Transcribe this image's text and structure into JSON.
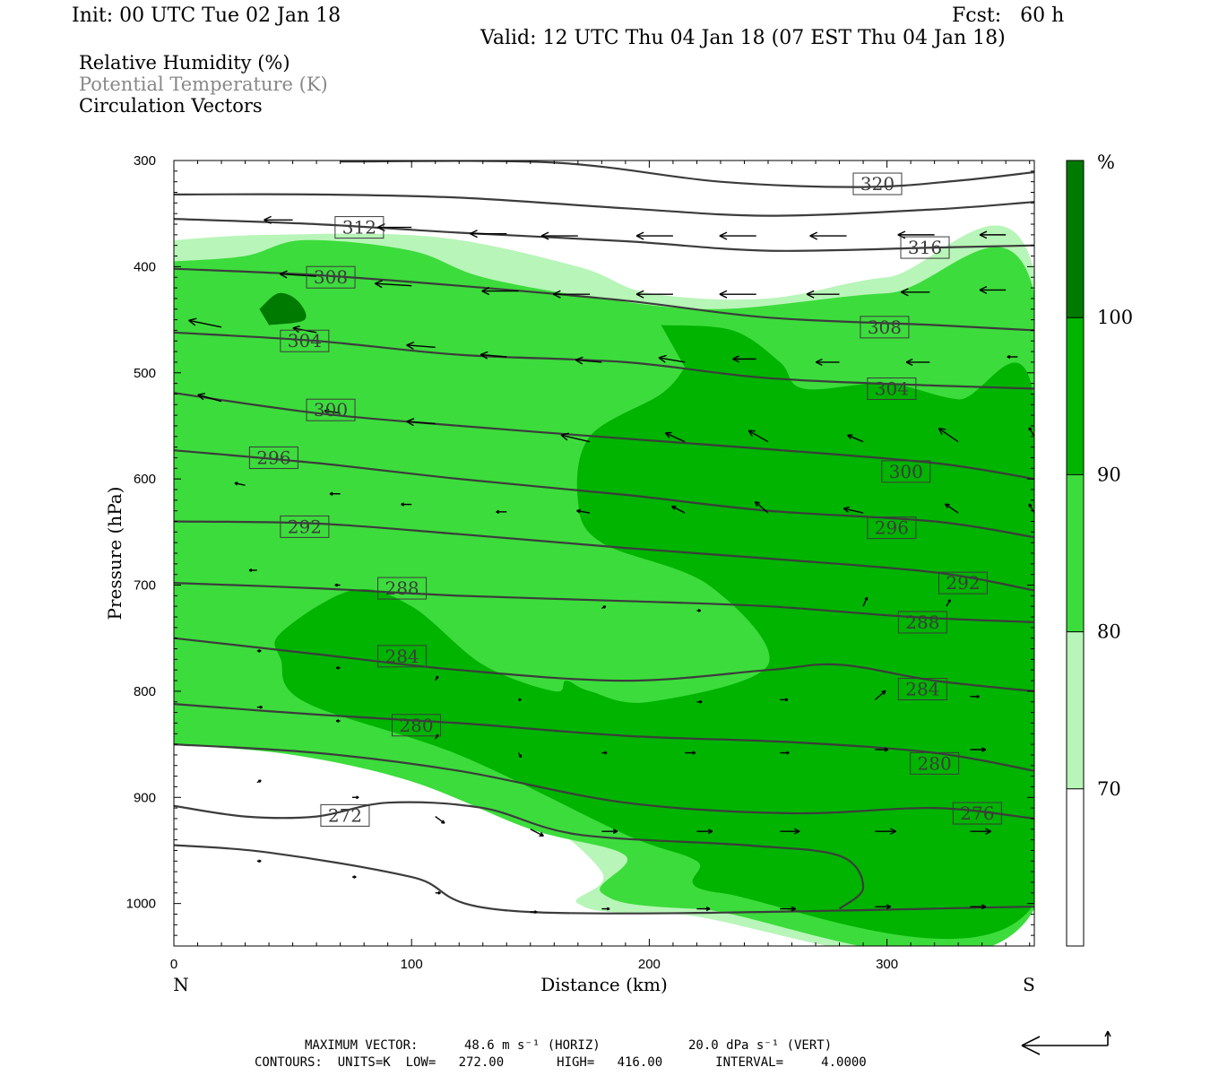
{
  "header": {
    "init": "Init: 00 UTC Tue 02 Jan 18",
    "fcst": "Fcst:   60 h",
    "valid": "Valid: 12 UTC Thu 04 Jan 18 (07 EST Thu 04 Jan 18)",
    "field_rh": "Relative Humidity (%)",
    "field_theta": "Potential Temperature (K)",
    "field_vectors": "Circulation Vectors"
  },
  "footer": {
    "max_vector_label": "MAXIMUM VECTOR:",
    "max_vector_horiz": "48.6 m s⁻¹ (HORIZ)",
    "max_vector_vert": "20.0 dPa s⁻¹ (VERT)",
    "contours_line": "CONTOURS:  UNITS=K  LOW=   272.00       HIGH=   416.00       INTERVAL=     4.0000"
  },
  "colors": {
    "rh_70_80": "#b8f5b8",
    "rh_80_90": "#3cdc3c",
    "rh_90_100": "#00b400",
    "rh_100_plus": "#007a00",
    "isentrope": "#3c3c3c",
    "vector": "#000000"
  },
  "chart_data": {
    "type": "cross-section",
    "x": {
      "label": "Distance (km)",
      "range": [
        0,
        362
      ],
      "ticks": [
        0,
        100,
        200,
        300
      ],
      "left_end": "N",
      "right_end": "S"
    },
    "y": {
      "label": "Pressure (hPa)",
      "range": [
        1040,
        300
      ],
      "ticks": [
        300,
        400,
        500,
        600,
        700,
        800,
        900,
        1000
      ],
      "reversed": true
    },
    "colorbar": {
      "unit": "%",
      "levels": [
        70,
        80,
        90,
        100
      ]
    },
    "rh_regions": [
      {
        "level": 70,
        "boundary": [
          [
            0,
            375
          ],
          [
            40,
            370
          ],
          [
            110,
            372
          ],
          [
            170,
            400
          ],
          [
            200,
            425
          ],
          [
            250,
            430
          ],
          [
            300,
            410
          ],
          [
            362,
            405
          ],
          [
            362,
            1005
          ],
          [
            210,
            1010
          ],
          [
            170,
            1000
          ],
          [
            180,
            970
          ],
          [
            140,
            900
          ],
          [
            80,
            860
          ],
          [
            0,
            850
          ]
        ]
      },
      {
        "level": 80,
        "boundary": [
          [
            0,
            395
          ],
          [
            30,
            390
          ],
          [
            55,
            375
          ],
          [
            100,
            385
          ],
          [
            130,
            410
          ],
          [
            180,
            430
          ],
          [
            230,
            440
          ],
          [
            300,
            425
          ],
          [
            362,
            425
          ],
          [
            362,
            1005
          ],
          [
            220,
            1005
          ],
          [
            180,
            990
          ],
          [
            190,
            955
          ],
          [
            150,
            930
          ],
          [
            100,
            885
          ],
          [
            50,
            860
          ],
          [
            0,
            850
          ]
        ]
      },
      {
        "level": 90,
        "boundary": [
          [
            205,
            455
          ],
          [
            235,
            460
          ],
          [
            255,
            490
          ],
          [
            265,
            515
          ],
          [
            300,
            510
          ],
          [
            330,
            525
          ],
          [
            362,
            525
          ],
          [
            362,
            1000
          ],
          [
            230,
            990
          ],
          [
            220,
            960
          ],
          [
            190,
            935
          ],
          [
            120,
            860
          ],
          [
            55,
            810
          ],
          [
            45,
            770
          ],
          [
            45,
            745
          ],
          [
            75,
            705
          ],
          [
            100,
            720
          ],
          [
            130,
            775
          ],
          [
            160,
            800
          ],
          [
            165,
            790
          ],
          [
            175,
            800
          ],
          [
            200,
            810
          ],
          [
            250,
            775
          ],
          [
            225,
            700
          ],
          [
            180,
            660
          ],
          [
            170,
            620
          ],
          [
            175,
            560
          ],
          [
            205,
            520
          ],
          [
            215,
            495
          ]
        ]
      },
      {
        "level": 100,
        "boundary": [
          [
            36,
            440
          ],
          [
            44,
            425
          ],
          [
            52,
            432
          ],
          [
            55,
            450
          ],
          [
            40,
            455
          ]
        ]
      }
    ],
    "isentropes": [
      {
        "theta": 272,
        "points": [
          [
            0,
            908
          ],
          [
            30,
            918
          ],
          [
            60,
            918
          ],
          [
            90,
            905
          ],
          [
            130,
            910
          ],
          [
            170,
            935
          ],
          [
            240,
            945
          ],
          [
            280,
            955
          ],
          [
            290,
            985
          ],
          [
            280,
            1005
          ]
        ]
      },
      {
        "theta": 276,
        "points": [
          [
            0,
            945
          ],
          [
            40,
            952
          ],
          [
            100,
            975
          ],
          [
            150,
            1008
          ],
          [
            362,
            1003
          ]
        ]
      },
      {
        "theta": 276,
        "points": [
          [
            0,
            850
          ],
          [
            60,
            858
          ],
          [
            120,
            875
          ],
          [
            190,
            905
          ],
          [
            260,
            915
          ],
          [
            320,
            910
          ],
          [
            362,
            920
          ]
        ]
      },
      {
        "theta": 280,
        "points": [
          [
            0,
            812
          ],
          [
            60,
            822
          ],
          [
            120,
            830
          ],
          [
            190,
            842
          ],
          [
            260,
            848
          ],
          [
            320,
            858
          ],
          [
            362,
            875
          ]
        ]
      },
      {
        "theta": 284,
        "points": [
          [
            0,
            750
          ],
          [
            60,
            765
          ],
          [
            120,
            780
          ],
          [
            190,
            790
          ],
          [
            250,
            780
          ],
          [
            280,
            775
          ],
          [
            320,
            790
          ],
          [
            362,
            800
          ]
        ]
      },
      {
        "theta": 288,
        "points": [
          [
            0,
            698
          ],
          [
            60,
            703
          ],
          [
            120,
            710
          ],
          [
            190,
            715
          ],
          [
            250,
            720
          ],
          [
            310,
            730
          ],
          [
            362,
            735
          ]
        ]
      },
      {
        "theta": 292,
        "points": [
          [
            0,
            640
          ],
          [
            60,
            642
          ],
          [
            120,
            652
          ],
          [
            190,
            665
          ],
          [
            250,
            675
          ],
          [
            320,
            688
          ],
          [
            362,
            705
          ]
        ]
      },
      {
        "theta": 296,
        "points": [
          [
            0,
            573
          ],
          [
            60,
            585
          ],
          [
            120,
            600
          ],
          [
            190,
            615
          ],
          [
            250,
            630
          ],
          [
            320,
            640
          ],
          [
            362,
            655
          ]
        ]
      },
      {
        "theta": 300,
        "points": [
          [
            0,
            519
          ],
          [
            60,
            538
          ],
          [
            120,
            550
          ],
          [
            190,
            562
          ],
          [
            250,
            572
          ],
          [
            320,
            585
          ],
          [
            362,
            600
          ]
        ]
      },
      {
        "theta": 304,
        "points": [
          [
            0,
            462
          ],
          [
            60,
            470
          ],
          [
            120,
            483
          ],
          [
            190,
            490
          ],
          [
            250,
            505
          ],
          [
            320,
            512
          ],
          [
            362,
            515
          ]
        ]
      },
      {
        "theta": 308,
        "points": [
          [
            0,
            402
          ],
          [
            60,
            408
          ],
          [
            120,
            418
          ],
          [
            190,
            432
          ],
          [
            250,
            448
          ],
          [
            320,
            455
          ],
          [
            362,
            460
          ]
        ]
      },
      {
        "theta": 312,
        "points": [
          [
            0,
            355
          ],
          [
            60,
            360
          ],
          [
            120,
            368
          ],
          [
            190,
            376
          ],
          [
            250,
            385
          ],
          [
            320,
            382
          ],
          [
            362,
            380
          ]
        ]
      },
      {
        "theta": 316,
        "points": [
          [
            0,
            332
          ],
          [
            60,
            332
          ],
          [
            120,
            335
          ],
          [
            190,
            345
          ],
          [
            250,
            352
          ],
          [
            320,
            346
          ],
          [
            362,
            339
          ]
        ]
      },
      {
        "theta": 320,
        "points": [
          [
            70,
            301
          ],
          [
            160,
            302
          ],
          [
            230,
            320
          ],
          [
            290,
            325
          ],
          [
            330,
            319
          ],
          [
            362,
            311
          ]
        ]
      }
    ],
    "contour_labels": [
      {
        "text": "320",
        "x": 296,
        "y": 322
      },
      {
        "text": "316",
        "x": 316,
        "y": 382
      },
      {
        "text": "312",
        "x": 78,
        "y": 363
      },
      {
        "text": "308",
        "x": 66,
        "y": 410
      },
      {
        "text": "308",
        "x": 299,
        "y": 457
      },
      {
        "text": "304",
        "x": 55,
        "y": 470
      },
      {
        "text": "304",
        "x": 302,
        "y": 515
      },
      {
        "text": "300",
        "x": 66,
        "y": 535
      },
      {
        "text": "300",
        "x": 308,
        "y": 593
      },
      {
        "text": "296",
        "x": 42,
        "y": 580
      },
      {
        "text": "296",
        "x": 302,
        "y": 646
      },
      {
        "text": "292",
        "x": 55,
        "y": 645
      },
      {
        "text": "292",
        "x": 332,
        "y": 698
      },
      {
        "text": "288",
        "x": 96,
        "y": 703
      },
      {
        "text": "288",
        "x": 315,
        "y": 735
      },
      {
        "text": "284",
        "x": 96,
        "y": 767
      },
      {
        "text": "284",
        "x": 315,
        "y": 798
      },
      {
        "text": "280",
        "x": 102,
        "y": 832
      },
      {
        "text": "280",
        "x": 320,
        "y": 868
      },
      {
        "text": "276",
        "x": 338,
        "y": 915
      },
      {
        "text": "272",
        "x": 72,
        "y": 917
      }
    ],
    "vectors": [
      [
        0,
        356,
        -35,
        0
      ],
      [
        50,
        356,
        -22,
        0
      ],
      [
        100,
        363,
        -26,
        0
      ],
      [
        140,
        369,
        -28,
        0
      ],
      [
        170,
        371,
        -28,
        0
      ],
      [
        210,
        371,
        -28,
        0
      ],
      [
        245,
        371,
        -28,
        0
      ],
      [
        283,
        371,
        -28,
        0
      ],
      [
        320,
        370,
        -28,
        0
      ],
      [
        350,
        370,
        -20,
        0
      ],
      [
        0,
        400,
        -18,
        -1
      ],
      [
        60,
        409,
        -28,
        -1
      ],
      [
        100,
        418,
        -28,
        -1
      ],
      [
        145,
        423,
        -28,
        0
      ],
      [
        175,
        426,
        -28,
        0
      ],
      [
        210,
        426,
        -28,
        0
      ],
      [
        245,
        426,
        -28,
        0
      ],
      [
        280,
        426,
        -25,
        0
      ],
      [
        318,
        424,
        -22,
        0
      ],
      [
        350,
        422,
        -20,
        0
      ],
      [
        20,
        457,
        -25,
        -3
      ],
      [
        60,
        462,
        -18,
        -2
      ],
      [
        110,
        476,
        -22,
        -1
      ],
      [
        140,
        485,
        -20,
        -1
      ],
      [
        180,
        490,
        -20,
        -1
      ],
      [
        215,
        490,
        -20,
        -2
      ],
      [
        245,
        487,
        -18,
        0
      ],
      [
        280,
        490,
        -18,
        0
      ],
      [
        318,
        490,
        -18,
        0
      ],
      [
        355,
        485,
        -8,
        0
      ],
      [
        20,
        527,
        -18,
        -3
      ],
      [
        70,
        538,
        -12,
        -1
      ],
      [
        110,
        548,
        -22,
        -1
      ],
      [
        175,
        565,
        -22,
        -3
      ],
      [
        215,
        565,
        -15,
        -4
      ],
      [
        250,
        565,
        -15,
        -5
      ],
      [
        290,
        565,
        -12,
        -3
      ],
      [
        330,
        565,
        -15,
        -6
      ],
      [
        362,
        560,
        -4,
        -4
      ],
      [
        30,
        606,
        -8,
        -1
      ],
      [
        70,
        614,
        -8,
        0
      ],
      [
        100,
        624,
        -8,
        0
      ],
      [
        140,
        631,
        -8,
        0
      ],
      [
        175,
        632,
        -10,
        -1
      ],
      [
        215,
        632,
        -10,
        -3
      ],
      [
        250,
        632,
        -10,
        -5
      ],
      [
        290,
        632,
        -15,
        -2
      ],
      [
        330,
        632,
        -10,
        -4
      ],
      [
        362,
        632,
        -4,
        -4
      ],
      [
        35,
        686,
        -6,
        0
      ],
      [
        70,
        700,
        -4,
        0
      ],
      [
        180,
        722,
        3,
        -1
      ],
      [
        220,
        724,
        3,
        0
      ],
      [
        290,
        720,
        3,
        -4
      ],
      [
        325,
        720,
        3,
        -3
      ],
      [
        35,
        762,
        3,
        0
      ],
      [
        70,
        778,
        -3,
        0
      ],
      [
        110,
        790,
        2,
        -2
      ],
      [
        145,
        808,
        2,
        0
      ],
      [
        220,
        810,
        4,
        0
      ],
      [
        255,
        808,
        6,
        0
      ],
      [
        295,
        808,
        8,
        -4
      ],
      [
        335,
        805,
        7,
        0
      ],
      [
        35,
        815,
        4,
        0
      ],
      [
        70,
        828,
        -3,
        0
      ],
      [
        110,
        845,
        2,
        -2
      ],
      [
        145,
        858,
        2,
        2
      ],
      [
        180,
        858,
        4,
        0
      ],
      [
        215,
        858,
        8,
        0
      ],
      [
        255,
        858,
        7,
        0
      ],
      [
        295,
        855,
        10,
        0
      ],
      [
        335,
        855,
        12,
        0
      ],
      [
        35,
        886,
        3,
        -1
      ],
      [
        75,
        900,
        5,
        0
      ],
      [
        110,
        918,
        7,
        3
      ],
      [
        150,
        930,
        10,
        3
      ],
      [
        180,
        932,
        12,
        0
      ],
      [
        220,
        932,
        12,
        0
      ],
      [
        255,
        932,
        15,
        0
      ],
      [
        295,
        932,
        16,
        0
      ],
      [
        335,
        932,
        16,
        0
      ],
      [
        35,
        960,
        3,
        0
      ],
      [
        75,
        975,
        3,
        0
      ],
      [
        110,
        990,
        4,
        0
      ],
      [
        150,
        1008,
        5,
        0
      ],
      [
        180,
        1005,
        6,
        0
      ],
      [
        220,
        1005,
        10,
        0
      ],
      [
        255,
        1005,
        12,
        0
      ],
      [
        295,
        1003,
        12,
        0
      ],
      [
        335,
        1003,
        12,
        0
      ]
    ]
  }
}
